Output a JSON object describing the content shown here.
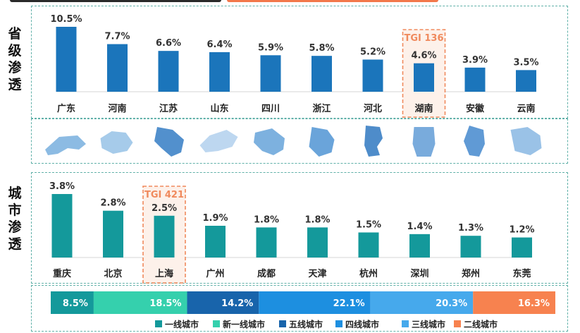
{
  "side_labels": {
    "province": "省级渗透",
    "city": "城市渗透"
  },
  "highlight_colors": {
    "province_bar": "#1b75bb",
    "city_bar": "#14999b",
    "tgi_box": "#f08a5d"
  },
  "chart_data": [
    {
      "type": "bar",
      "name_printed": "",
      "categories": [
        "广东",
        "河南",
        "江苏",
        "山东",
        "四川",
        "浙江",
        "河北",
        "湖南",
        "安徽",
        "云南"
      ],
      "values": [
        10.5,
        7.7,
        6.6,
        6.4,
        5.9,
        5.8,
        5.2,
        4.6,
        3.9,
        3.5
      ],
      "value_labels": [
        "10.5%",
        "7.7%",
        "6.6%",
        "6.4%",
        "5.9%",
        "5.8%",
        "5.2%",
        "4.6%",
        "3.9%",
        "3.5%"
      ],
      "bar_color": "#1b75bb",
      "highlight": {
        "index": 7,
        "label": "TGI 136"
      },
      "ylim": [
        0,
        10.5
      ]
    },
    {
      "type": "bar",
      "categories": [
        "重庆",
        "北京",
        "上海",
        "广州",
        "成都",
        "天津",
        "杭州",
        "深圳",
        "郑州",
        "东莞"
      ],
      "values": [
        3.8,
        2.8,
        2.5,
        1.9,
        1.8,
        1.8,
        1.5,
        1.4,
        1.3,
        1.2
      ],
      "value_labels": [
        "3.8%",
        "2.8%",
        "2.5%",
        "1.9%",
        "1.8%",
        "1.8%",
        "1.5%",
        "1.4%",
        "1.3%",
        "1.2%"
      ],
      "bar_color": "#14999b",
      "highlight": {
        "index": 2,
        "label": "TGI 421"
      },
      "ylim": [
        0,
        3.8
      ]
    },
    {
      "type": "bar",
      "stacked": true,
      "orientation": "horizontal",
      "segments": [
        {
          "name": "一线城市",
          "value": 8.5,
          "label": "8.5%",
          "color": "#14999b"
        },
        {
          "name": "新一线城市",
          "value": 18.5,
          "label": "18.5%",
          "color": "#35d0ad"
        },
        {
          "name": "五线城市",
          "value": 14.2,
          "label": "14.2%",
          "color": "#1864ab"
        },
        {
          "name": "四线城市",
          "value": 22.1,
          "label": "22.1%",
          "color": "#1d8fe0"
        },
        {
          "name": "三线城市",
          "value": 20.3,
          "label": "20.3%",
          "color": "#46a9ec"
        },
        {
          "name": "二线城市",
          "value": 16.3,
          "label": "16.3%",
          "color": "#f7824f"
        }
      ],
      "legend_placement": "bottom"
    }
  ]
}
